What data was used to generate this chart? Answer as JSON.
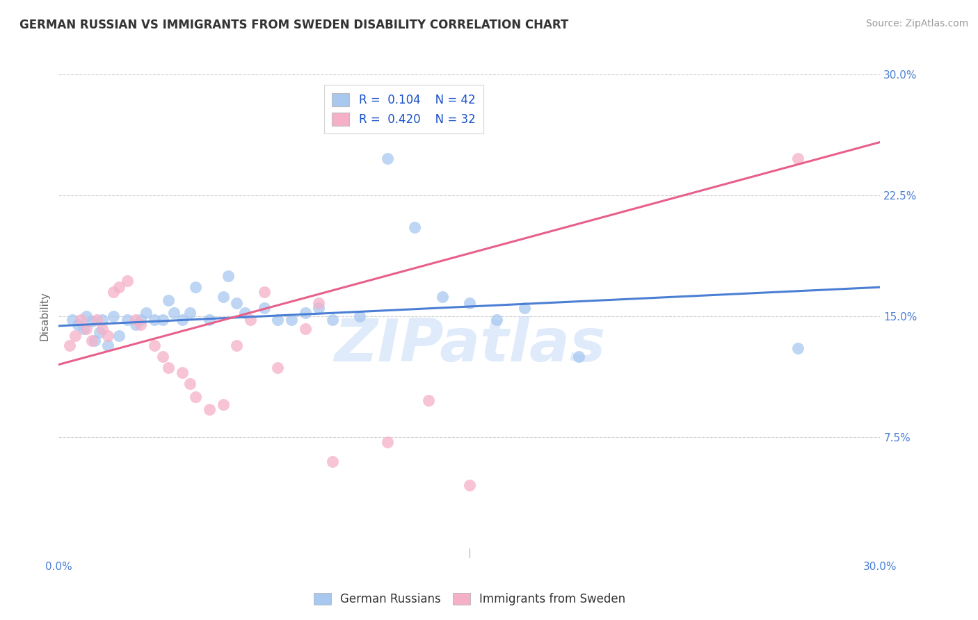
{
  "title": "GERMAN RUSSIAN VS IMMIGRANTS FROM SWEDEN DISABILITY CORRELATION CHART",
  "source": "Source: ZipAtlas.com",
  "xlabel_label": "German Russians",
  "ylabel_label": "Disability",
  "xlabel2_label": "Immigrants from Sweden",
  "x_min": 0.0,
  "x_max": 0.3,
  "y_min": 0.0,
  "y_max": 0.3,
  "y_ticks": [
    0.075,
    0.15,
    0.225,
    0.3
  ],
  "y_tick_labels": [
    "7.5%",
    "15.0%",
    "22.5%",
    "30.0%"
  ],
  "x_ticks": [
    0.0,
    0.075,
    0.15,
    0.225,
    0.3
  ],
  "x_tick_labels": [
    "0.0%",
    "",
    "",
    "",
    "30.0%"
  ],
  "legend_r1": "R =  0.104",
  "legend_n1": "N = 42",
  "legend_r2": "R =  0.420",
  "legend_n2": "N = 32",
  "blue_color": "#a8c8f0",
  "pink_color": "#f5b0c8",
  "blue_line_color": "#4a7fd4",
  "pink_line_color": "#e8608a",
  "watermark": "ZIPatlas",
  "blue_scatter_x": [
    0.005,
    0.007,
    0.009,
    0.01,
    0.012,
    0.013,
    0.015,
    0.016,
    0.018,
    0.02,
    0.022,
    0.025,
    0.028,
    0.03,
    0.032,
    0.035,
    0.038,
    0.04,
    0.042,
    0.045,
    0.048,
    0.05,
    0.055,
    0.06,
    0.062,
    0.065,
    0.068,
    0.075,
    0.08,
    0.085,
    0.09,
    0.095,
    0.1,
    0.11,
    0.12,
    0.13,
    0.14,
    0.15,
    0.16,
    0.17,
    0.19,
    0.27
  ],
  "blue_scatter_y": [
    0.148,
    0.145,
    0.142,
    0.15,
    0.147,
    0.135,
    0.14,
    0.148,
    0.132,
    0.15,
    0.138,
    0.148,
    0.145,
    0.148,
    0.152,
    0.148,
    0.148,
    0.16,
    0.152,
    0.148,
    0.152,
    0.168,
    0.148,
    0.162,
    0.175,
    0.158,
    0.152,
    0.155,
    0.148,
    0.148,
    0.152,
    0.155,
    0.148,
    0.15,
    0.248,
    0.205,
    0.162,
    0.158,
    0.148,
    0.155,
    0.125,
    0.13
  ],
  "pink_scatter_x": [
    0.004,
    0.006,
    0.008,
    0.01,
    0.012,
    0.014,
    0.016,
    0.018,
    0.02,
    0.022,
    0.025,
    0.028,
    0.03,
    0.035,
    0.038,
    0.04,
    0.045,
    0.048,
    0.05,
    0.055,
    0.06,
    0.065,
    0.07,
    0.075,
    0.08,
    0.09,
    0.095,
    0.1,
    0.12,
    0.135,
    0.15,
    0.27
  ],
  "pink_scatter_y": [
    0.132,
    0.138,
    0.148,
    0.142,
    0.135,
    0.148,
    0.142,
    0.138,
    0.165,
    0.168,
    0.172,
    0.148,
    0.145,
    0.132,
    0.125,
    0.118,
    0.115,
    0.108,
    0.1,
    0.092,
    0.095,
    0.132,
    0.148,
    0.165,
    0.118,
    0.142,
    0.158,
    0.06,
    0.072,
    0.098,
    0.045,
    0.248
  ],
  "blue_trend_x": [
    0.0,
    0.3
  ],
  "blue_trend_y": [
    0.144,
    0.168
  ],
  "pink_trend_x": [
    0.0,
    0.3
  ],
  "pink_trend_y": [
    0.12,
    0.258
  ]
}
